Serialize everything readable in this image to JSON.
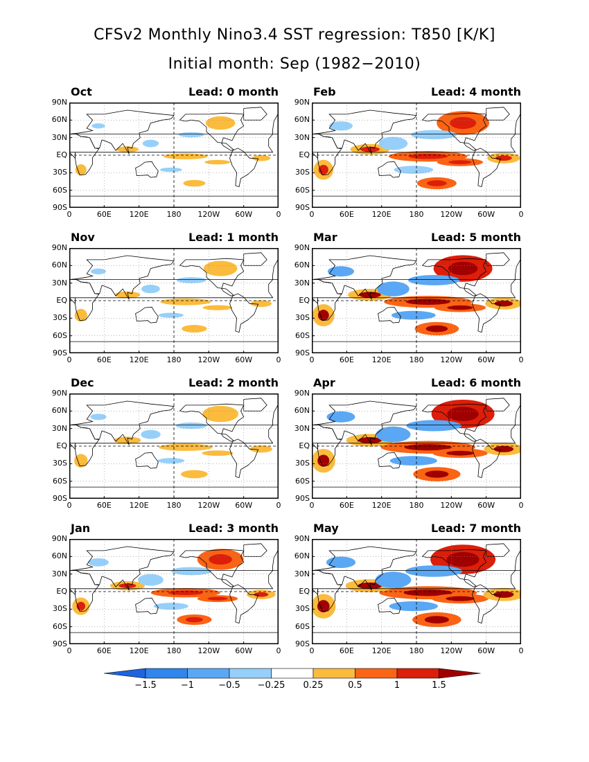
{
  "title": {
    "line1": "CFSv2 Monthly Nino3.4 SST regression: T850 [K/K]",
    "line2": "Initial month: Sep (1982−2010)"
  },
  "lead_prefix": "Lead:",
  "lead_unit": "month",
  "panels": [
    {
      "month": "Oct",
      "lead": 0,
      "intensity": 0.15
    },
    {
      "month": "Feb",
      "lead": 4,
      "intensity": 0.7
    },
    {
      "month": "Nov",
      "lead": 1,
      "intensity": 0.25
    },
    {
      "month": "Mar",
      "lead": 5,
      "intensity": 0.85
    },
    {
      "month": "Dec",
      "lead": 2,
      "intensity": 0.3
    },
    {
      "month": "Apr",
      "lead": 6,
      "intensity": 0.95
    },
    {
      "month": "Jan",
      "lead": 3,
      "intensity": 0.55
    },
    {
      "month": "May",
      "lead": 7,
      "intensity": 1.0
    }
  ],
  "lat_ticks": [
    "90N",
    "60N",
    "30N",
    "EQ",
    "30S",
    "60S",
    "90S"
  ],
  "lon_ticks": [
    "0",
    "60E",
    "120E",
    "180",
    "120W",
    "60W",
    "0"
  ],
  "colorbar": {
    "labels": [
      "−1.5",
      "−1",
      "−0.5",
      "−0.25",
      "0.25",
      "0.5",
      "1",
      "1.5"
    ],
    "colors": [
      "#1e64dc",
      "#2f86ec",
      "#5aa8f5",
      "#96d0fa",
      "#ffffff",
      "#fbbb3c",
      "#fa6414",
      "#dc1e0a",
      "#a00000"
    ]
  }
}
